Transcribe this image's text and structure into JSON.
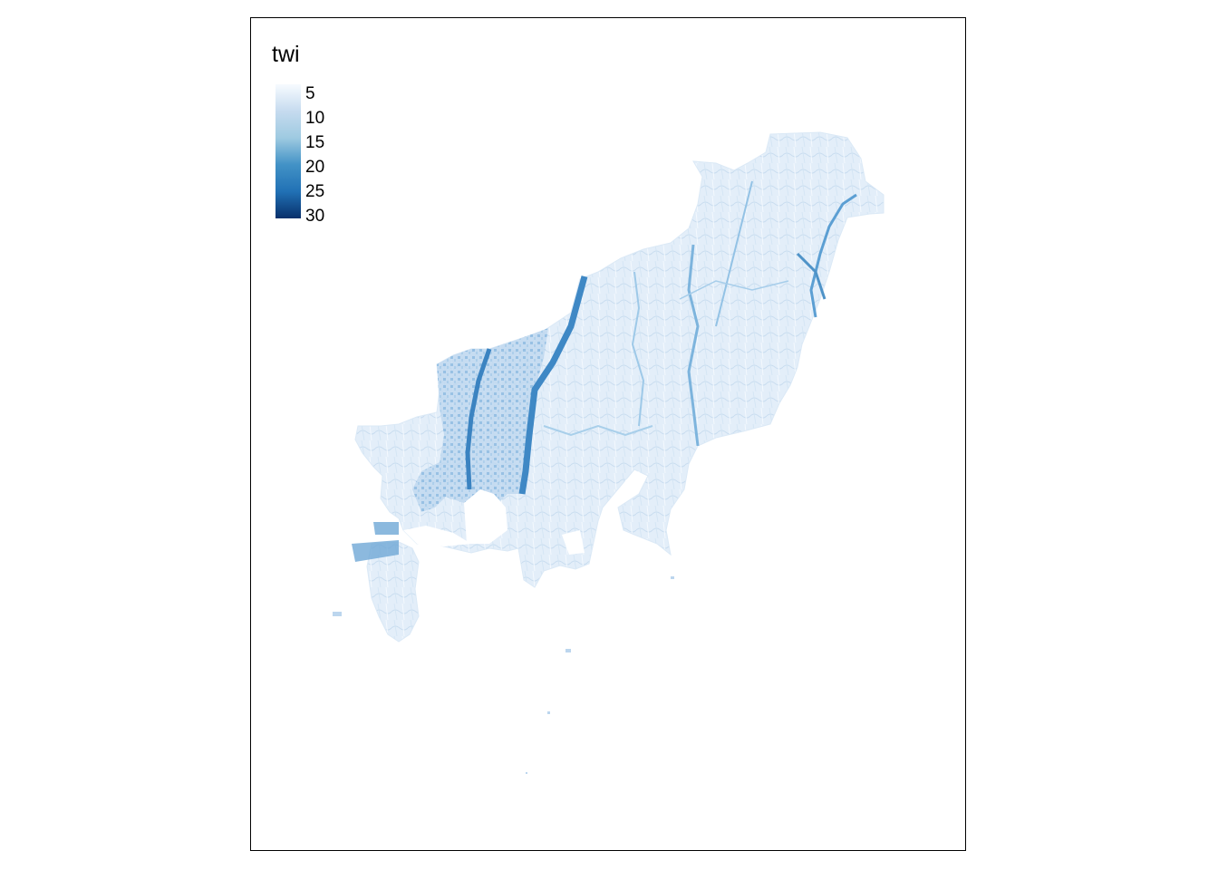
{
  "legend": {
    "title": "twi",
    "labels": [
      "5",
      "10",
      "15",
      "20",
      "25",
      "30"
    ],
    "color_low": "#f7fbff",
    "color_high": "#08306b"
  },
  "map": {
    "type": "raster",
    "variable": "twi",
    "palette": "Blues",
    "value_range": [
      5,
      30
    ],
    "frame_color": "#000000",
    "land_base_color": "#e4effa",
    "stream_color": "#4f93c8",
    "river_color": "#3f88c5"
  }
}
